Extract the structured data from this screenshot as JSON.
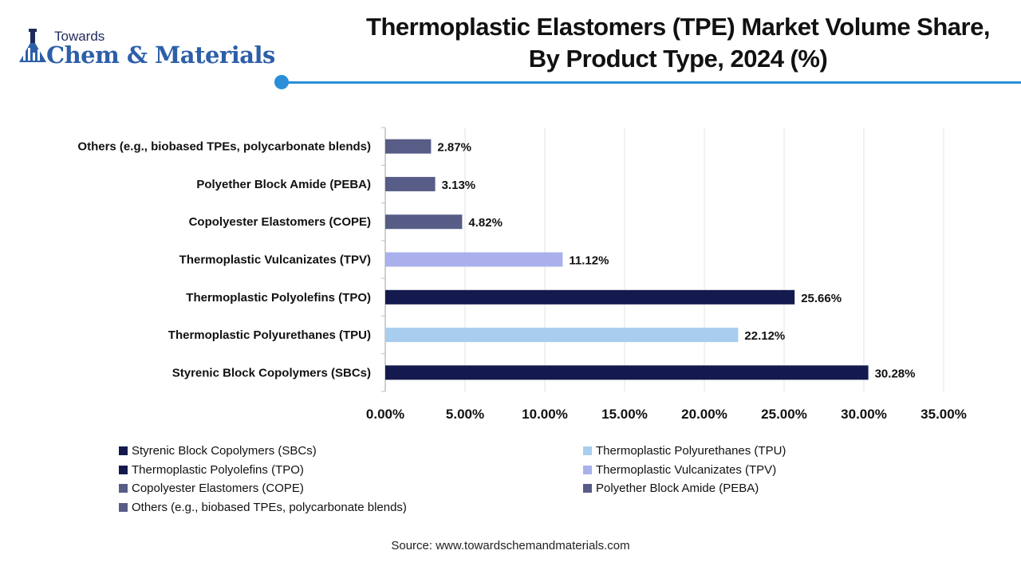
{
  "logo": {
    "towards": "Towards",
    "brand": "Chem & Materials"
  },
  "title_lines": [
    "Thermoplastic Elastomers (TPE) Market Volume Share,",
    "By Product Type, 2024 (%)"
  ],
  "colors": {
    "accent": "#2a8fd8",
    "dark_navy": "#141a4e",
    "light_blue": "#a9cdee",
    "lavender": "#a9b0ec",
    "slate": "#575d86"
  },
  "chart_data": {
    "type": "bar",
    "orientation": "horizontal",
    "categories": [
      "Others (e.g., biobased TPEs, polycarbonate blends)",
      "Polyether Block Amide (PEBA)",
      "Copolyester Elastomers (COPE)",
      "Thermoplastic Vulcanizates (TPV)",
      "Thermoplastic Polyolefins (TPO)",
      "Thermoplastic Polyurethanes (TPU)",
      "Styrenic Block Copolymers (SBCs)"
    ],
    "values": [
      2.87,
      3.13,
      4.82,
      11.12,
      25.66,
      22.12,
      30.28
    ],
    "value_labels": [
      "2.87%",
      "3.13%",
      "4.82%",
      "11.12%",
      "25.66%",
      "22.12%",
      "30.28%"
    ],
    "bar_colors": [
      "#575d86",
      "#575d86",
      "#575d86",
      "#a9b0ec",
      "#141a4e",
      "#a9cdee",
      "#141a4e"
    ],
    "xlim": [
      0,
      35
    ],
    "xticks": [
      0,
      5,
      10,
      15,
      20,
      25,
      30,
      35
    ],
    "xtick_labels": [
      "0.00%",
      "5.00%",
      "10.00%",
      "15.00%",
      "20.00%",
      "25.00%",
      "30.00%",
      "35.00%"
    ],
    "grid": true,
    "legend_position": "bottom",
    "legend": [
      {
        "label": "Styrenic Block Copolymers (SBCs)",
        "color": "#141a4e"
      },
      {
        "label": "Thermoplastic Polyurethanes (TPU)",
        "color": "#a9cdee"
      },
      {
        "label": "Thermoplastic Polyolefins (TPO)",
        "color": "#141a4e"
      },
      {
        "label": "Thermoplastic Vulcanizates (TPV)",
        "color": "#a9b0ec"
      },
      {
        "label": "Copolyester Elastomers (COPE)",
        "color": "#575d86"
      },
      {
        "label": "Polyether Block Amide (PEBA)",
        "color": "#575d86"
      },
      {
        "label": "Others (e.g., biobased TPEs, polycarbonate blends)",
        "color": "#575d86"
      }
    ]
  },
  "source": "Source: www.towardschemandmaterials.com"
}
